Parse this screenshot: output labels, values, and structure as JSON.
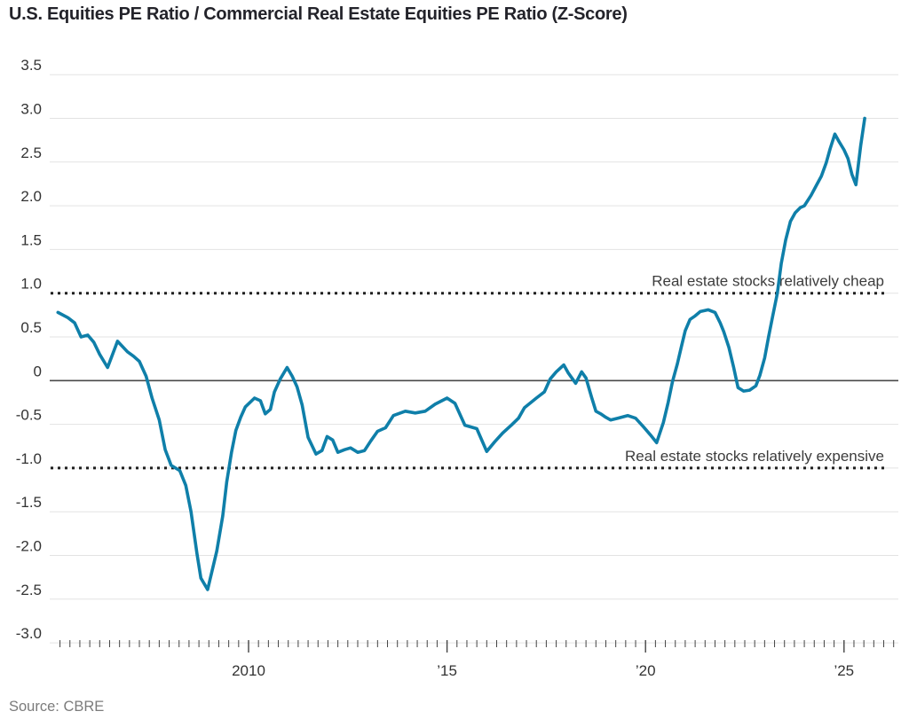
{
  "page": {
    "title": "U.S. Equities PE Ratio / Commercial Real Estate Equities PE Ratio (Z-Score)",
    "source_label": "Source: CBRE"
  },
  "chart_data": {
    "type": "line",
    "title": "U.S. Equities PE Ratio / Commercial Real Estate Equities PE Ratio (Z-Score)",
    "source": "Source: CBRE",
    "legend_position": "none",
    "grid": true,
    "x_axis": {
      "range": [
        2005.0,
        2026.3
      ],
      "minor_tick_interval_years": 0.25,
      "labeled_ticks": [
        {
          "x": 2010,
          "label": "2010"
        },
        {
          "x": 2015,
          "label": "’15"
        },
        {
          "x": 2020,
          "label": "’20"
        },
        {
          "x": 2025,
          "label": "’25"
        }
      ]
    },
    "y_axis": {
      "range": [
        -3.0,
        3.5
      ],
      "tick_step": 0.5,
      "ticks": [
        {
          "v": 3.5,
          "label": "3.5"
        },
        {
          "v": 3.0,
          "label": "3.0"
        },
        {
          "v": 2.5,
          "label": "2.5"
        },
        {
          "v": 2.0,
          "label": "2.0"
        },
        {
          "v": 1.5,
          "label": "1.5"
        },
        {
          "v": 1.0,
          "label": "1.0"
        },
        {
          "v": 0.5,
          "label": "0.5"
        },
        {
          "v": 0,
          "label": "0"
        },
        {
          "v": -0.5,
          "label": "-0.5"
        },
        {
          "v": -1.0,
          "label": "-1.0"
        },
        {
          "v": -1.5,
          "label": "-1.5"
        },
        {
          "v": -2.0,
          "label": "-2.0"
        },
        {
          "v": -2.5,
          "label": "-2.5"
        },
        {
          "v": -3.0,
          "label": "-3.0"
        }
      ],
      "zero_line": true
    },
    "reference_lines": [
      {
        "id": "cheap",
        "value": 1.0,
        "style": "dotted",
        "annotation": "Real estate stocks relatively cheap"
      },
      {
        "id": "expensive",
        "value": -1.0,
        "style": "dotted",
        "annotation": "Real estate stocks relatively expensive"
      }
    ],
    "colors": {
      "line": "#0f7fa9",
      "gridline": "#e3e3e3",
      "zero_line": "#4a4a4a",
      "dotted_line": "#1f1f1f",
      "tick": "#444444",
      "tick_label": "#333333",
      "annotation": "#3c3c3c"
    },
    "series": [
      {
        "name": "U.S. equities PE ratio / commercial real estate equities PE ratio (z-score)",
        "points": [
          [
            2005.2,
            0.78
          ],
          [
            2005.45,
            0.72
          ],
          [
            2005.62,
            0.66
          ],
          [
            2005.78,
            0.5
          ],
          [
            2005.95,
            0.52
          ],
          [
            2006.1,
            0.44
          ],
          [
            2006.25,
            0.3
          ],
          [
            2006.45,
            0.15
          ],
          [
            2006.7,
            0.45
          ],
          [
            2006.95,
            0.33
          ],
          [
            2007.1,
            0.28
          ],
          [
            2007.25,
            0.22
          ],
          [
            2007.42,
            0.05
          ],
          [
            2007.57,
            -0.2
          ],
          [
            2007.75,
            -0.45
          ],
          [
            2007.9,
            -0.79
          ],
          [
            2008.05,
            -0.97
          ],
          [
            2008.27,
            -1.03
          ],
          [
            2008.42,
            -1.2
          ],
          [
            2008.55,
            -1.5
          ],
          [
            2008.7,
            -1.98
          ],
          [
            2008.8,
            -2.26
          ],
          [
            2008.97,
            -2.39
          ],
          [
            2009.2,
            -1.95
          ],
          [
            2009.35,
            -1.55
          ],
          [
            2009.45,
            -1.16
          ],
          [
            2009.57,
            -0.82
          ],
          [
            2009.68,
            -0.57
          ],
          [
            2009.8,
            -0.42
          ],
          [
            2009.92,
            -0.3
          ],
          [
            2010.15,
            -0.2
          ],
          [
            2010.3,
            -0.23
          ],
          [
            2010.42,
            -0.38
          ],
          [
            2010.55,
            -0.33
          ],
          [
            2010.65,
            -0.13
          ],
          [
            2010.8,
            0.02
          ],
          [
            2010.97,
            0.15
          ],
          [
            2011.1,
            0.05
          ],
          [
            2011.22,
            -0.07
          ],
          [
            2011.35,
            -0.28
          ],
          [
            2011.5,
            -0.65
          ],
          [
            2011.7,
            -0.84
          ],
          [
            2011.85,
            -0.8
          ],
          [
            2011.98,
            -0.64
          ],
          [
            2012.12,
            -0.68
          ],
          [
            2012.25,
            -0.82
          ],
          [
            2012.42,
            -0.79
          ],
          [
            2012.57,
            -0.77
          ],
          [
            2012.75,
            -0.82
          ],
          [
            2012.92,
            -0.8
          ],
          [
            2013.08,
            -0.69
          ],
          [
            2013.25,
            -0.58
          ],
          [
            2013.45,
            -0.54
          ],
          [
            2013.65,
            -0.4
          ],
          [
            2013.95,
            -0.35
          ],
          [
            2014.2,
            -0.37
          ],
          [
            2014.45,
            -0.35
          ],
          [
            2014.7,
            -0.27
          ],
          [
            2015.0,
            -0.2
          ],
          [
            2015.2,
            -0.26
          ],
          [
            2015.45,
            -0.51
          ],
          [
            2015.75,
            -0.55
          ],
          [
            2016.0,
            -0.81
          ],
          [
            2016.2,
            -0.7
          ],
          [
            2016.4,
            -0.6
          ],
          [
            2016.62,
            -0.51
          ],
          [
            2016.8,
            -0.43
          ],
          [
            2016.95,
            -0.31
          ],
          [
            2017.25,
            -0.2
          ],
          [
            2017.45,
            -0.13
          ],
          [
            2017.6,
            0.02
          ],
          [
            2017.75,
            0.1
          ],
          [
            2017.94,
            0.18
          ],
          [
            2018.05,
            0.09
          ],
          [
            2018.24,
            -0.03
          ],
          [
            2018.39,
            0.1
          ],
          [
            2018.5,
            0.03
          ],
          [
            2018.64,
            -0.19
          ],
          [
            2018.75,
            -0.35
          ],
          [
            2018.87,
            -0.38
          ],
          [
            2019.0,
            -0.42
          ],
          [
            2019.12,
            -0.45
          ],
          [
            2019.3,
            -0.43
          ],
          [
            2019.55,
            -0.4
          ],
          [
            2019.75,
            -0.43
          ],
          [
            2019.95,
            -0.53
          ],
          [
            2020.12,
            -0.62
          ],
          [
            2020.28,
            -0.71
          ],
          [
            2020.45,
            -0.48
          ],
          [
            2020.57,
            -0.25
          ],
          [
            2020.68,
            -0.01
          ],
          [
            2020.8,
            0.19
          ],
          [
            2020.9,
            0.38
          ],
          [
            2021.0,
            0.57
          ],
          [
            2021.12,
            0.7
          ],
          [
            2021.25,
            0.74
          ],
          [
            2021.38,
            0.79
          ],
          [
            2021.58,
            0.81
          ],
          [
            2021.75,
            0.78
          ],
          [
            2021.88,
            0.66
          ],
          [
            2021.97,
            0.56
          ],
          [
            2022.1,
            0.38
          ],
          [
            2022.22,
            0.15
          ],
          [
            2022.33,
            -0.08
          ],
          [
            2022.47,
            -0.12
          ],
          [
            2022.62,
            -0.11
          ],
          [
            2022.78,
            -0.06
          ],
          [
            2022.88,
            0.06
          ],
          [
            2023.0,
            0.26
          ],
          [
            2023.1,
            0.5
          ],
          [
            2023.2,
            0.73
          ],
          [
            2023.32,
            1.0
          ],
          [
            2023.42,
            1.34
          ],
          [
            2023.53,
            1.61
          ],
          [
            2023.65,
            1.82
          ],
          [
            2023.77,
            1.92
          ],
          [
            2023.9,
            1.98
          ],
          [
            2024.0,
            2.0
          ],
          [
            2024.17,
            2.12
          ],
          [
            2024.3,
            2.23
          ],
          [
            2024.43,
            2.34
          ],
          [
            2024.55,
            2.49
          ],
          [
            2024.65,
            2.65
          ],
          [
            2024.77,
            2.82
          ],
          [
            2024.88,
            2.73
          ],
          [
            2025.0,
            2.64
          ],
          [
            2025.1,
            2.54
          ],
          [
            2025.2,
            2.36
          ],
          [
            2025.3,
            2.24
          ],
          [
            2025.42,
            2.69
          ],
          [
            2025.52,
            3.0
          ]
        ]
      }
    ]
  }
}
